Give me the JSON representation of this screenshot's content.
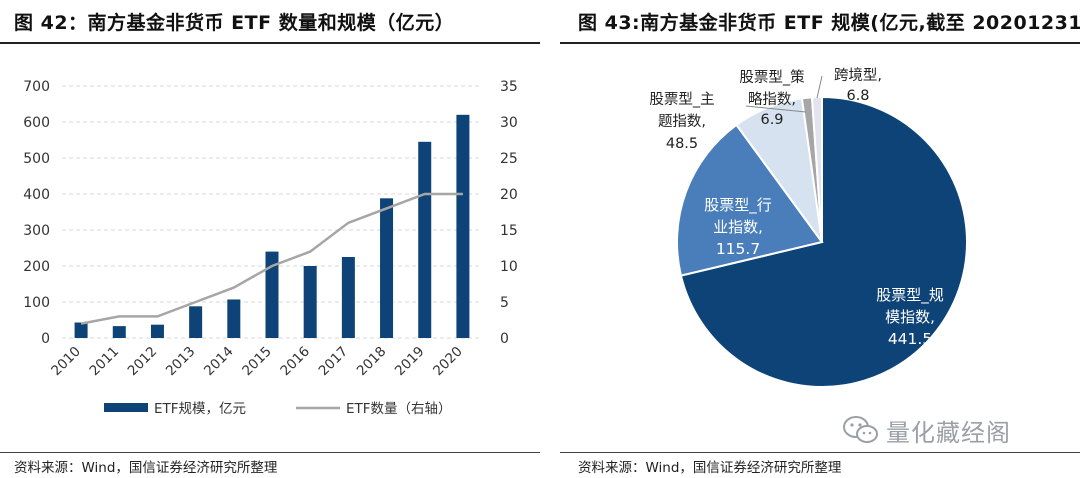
{
  "left": {
    "title": "图 42：南方基金非货币 ETF 数量和规模（亿元）",
    "source": "资料来源：Wind，国信证券经济研究所整理"
  },
  "right": {
    "title": "图 43:南方基金非货币 ETF 规模(亿元,截至 20201231）",
    "source": "资料来源：Wind，国信证券经济研究所整理"
  },
  "watermark": {
    "text": "量化藏经阁",
    "icon": "wechat-icon"
  },
  "colors": {
    "navy": "#0e4377",
    "gray_line": "#a6a6a6",
    "mid_blue": "#4a7ebb",
    "light_blue": "#d6e2f0"
  },
  "chart_data": [
    {
      "type": "bar",
      "title": "南方基金非货币 ETF 数量和规模（亿元）",
      "categories": [
        "2010",
        "2011",
        "2012",
        "2013",
        "2014",
        "2015",
        "2016",
        "2017",
        "2018",
        "2019",
        "2020"
      ],
      "series": [
        {
          "name": "ETF规模，亿元",
          "type": "bar",
          "axis": "left",
          "values": [
            43,
            33,
            37,
            88,
            107,
            240,
            200,
            225,
            388,
            545,
            620
          ]
        },
        {
          "name": "ETF数量（右轴）",
          "type": "line",
          "axis": "right",
          "values": [
            2,
            3,
            3,
            5,
            7,
            10,
            12,
            16,
            18,
            20,
            20
          ]
        }
      ],
      "ylim_left": [
        0,
        700
      ],
      "yticks_left": [
        "0",
        "100",
        "200",
        "300",
        "400",
        "500",
        "600",
        "700"
      ],
      "ylim_right": [
        0,
        35
      ],
      "yticks_right": [
        "0",
        "5",
        "10",
        "15",
        "20",
        "25",
        "30",
        "35"
      ],
      "grid": true,
      "legend_position": "bottom"
    },
    {
      "type": "pie",
      "title": "南方基金非货币 ETF 规模(亿元,截至 20201231）",
      "slices": [
        {
          "label": "股票型_规模指数",
          "label_lines": [
            "股票型_规",
            "模指数,"
          ],
          "value": 441.5,
          "value_text": "441.5",
          "color": "#0e4377"
        },
        {
          "label": "股票型_行业指数",
          "label_lines": [
            "股票型_行",
            "业指数,"
          ],
          "value": 115.7,
          "value_text": "115.7",
          "color": "#4a7ebb"
        },
        {
          "label": "股票型_主题指数",
          "label_lines": [
            "股票型_主",
            "题指数,"
          ],
          "value": 48.5,
          "value_text": "48.5",
          "color": "#d6e2f0"
        },
        {
          "label": "股票型_策略指数",
          "label_lines": [
            "股票型_策",
            "略指数,"
          ],
          "value": 6.9,
          "value_text": "6.9",
          "color": "#a6a6a6"
        },
        {
          "label": "跨境型",
          "label_lines": [
            "跨境型,"
          ],
          "value": 6.8,
          "value_text": "6.8",
          "color": "#e3e3ef"
        }
      ]
    }
  ]
}
